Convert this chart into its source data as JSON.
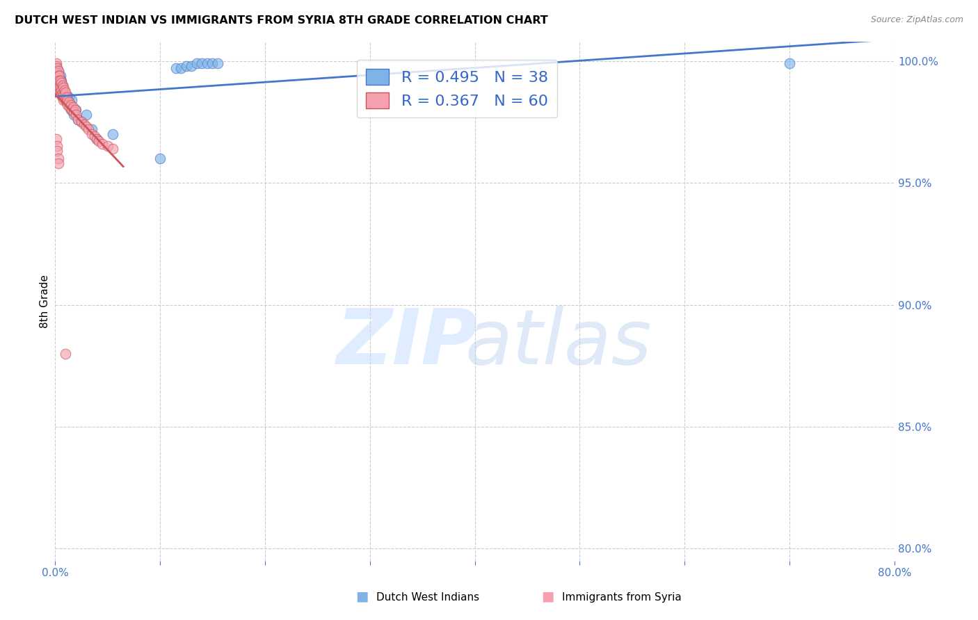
{
  "title": "DUTCH WEST INDIAN VS IMMIGRANTS FROM SYRIA 8TH GRADE CORRELATION CHART",
  "source": "Source: ZipAtlas.com",
  "xlabel_label": "Dutch West Indians",
  "ylabel_label": "8th Grade",
  "xlabel2_label": "Immigrants from Syria",
  "xlim": [
    0.0,
    0.8
  ],
  "ylim": [
    0.795,
    1.008
  ],
  "xticks": [
    0.0,
    0.1,
    0.2,
    0.3,
    0.4,
    0.5,
    0.6,
    0.7,
    0.8
  ],
  "yticks": [
    0.8,
    0.85,
    0.9,
    0.95,
    1.0
  ],
  "xtick_labels": [
    "0.0%",
    "",
    "",
    "",
    "",
    "",
    "",
    "",
    "80.0%"
  ],
  "ytick_labels_right": [
    "80.0%",
    "85.0%",
    "90.0%",
    "95.0%",
    "100.0%"
  ],
  "blue_color": "#7FB3E8",
  "pink_color": "#F4A0B0",
  "line_blue_color": "#4477CC",
  "line_pink_color": "#CC5555",
  "R_blue": 0.495,
  "N_blue": 38,
  "R_pink": 0.367,
  "N_pink": 60,
  "legend_text_color": "#3366CC",
  "blue_points_x": [
    0.001,
    0.002,
    0.003,
    0.004,
    0.004,
    0.005,
    0.005,
    0.006,
    0.007,
    0.007,
    0.008,
    0.009,
    0.01,
    0.011,
    0.012,
    0.013,
    0.014,
    0.015,
    0.016,
    0.018,
    0.02,
    0.022,
    0.025,
    0.03,
    0.035,
    0.04,
    0.055,
    0.1,
    0.115,
    0.12,
    0.125,
    0.13,
    0.135,
    0.14,
    0.145,
    0.15,
    0.155,
    0.7
  ],
  "blue_points_y": [
    0.997,
    0.992,
    0.996,
    0.993,
    0.99,
    0.988,
    0.994,
    0.992,
    0.99,
    0.987,
    0.988,
    0.985,
    0.984,
    0.986,
    0.983,
    0.985,
    0.982,
    0.98,
    0.984,
    0.978,
    0.98,
    0.976,
    0.975,
    0.978,
    0.972,
    0.968,
    0.97,
    0.96,
    0.997,
    0.997,
    0.998,
    0.998,
    0.999,
    0.999,
    0.999,
    0.999,
    0.999,
    0.999
  ],
  "pink_points_x": [
    0.001,
    0.001,
    0.001,
    0.002,
    0.002,
    0.002,
    0.002,
    0.003,
    0.003,
    0.003,
    0.003,
    0.004,
    0.004,
    0.004,
    0.005,
    0.005,
    0.005,
    0.006,
    0.006,
    0.006,
    0.007,
    0.007,
    0.007,
    0.008,
    0.008,
    0.008,
    0.009,
    0.009,
    0.01,
    0.01,
    0.011,
    0.011,
    0.012,
    0.012,
    0.013,
    0.014,
    0.015,
    0.016,
    0.017,
    0.018,
    0.019,
    0.02,
    0.022,
    0.025,
    0.028,
    0.03,
    0.032,
    0.035,
    0.038,
    0.04,
    0.042,
    0.045,
    0.05,
    0.055,
    0.001,
    0.002,
    0.002,
    0.003,
    0.003,
    0.01
  ],
  "pink_points_y": [
    0.999,
    0.998,
    0.996,
    0.997,
    0.995,
    0.993,
    0.991,
    0.996,
    0.994,
    0.992,
    0.99,
    0.994,
    0.992,
    0.989,
    0.992,
    0.989,
    0.987,
    0.991,
    0.988,
    0.986,
    0.99,
    0.987,
    0.985,
    0.989,
    0.986,
    0.984,
    0.988,
    0.985,
    0.987,
    0.984,
    0.985,
    0.983,
    0.984,
    0.982,
    0.983,
    0.981,
    0.982,
    0.98,
    0.981,
    0.979,
    0.98,
    0.978,
    0.976,
    0.975,
    0.974,
    0.973,
    0.972,
    0.97,
    0.969,
    0.968,
    0.967,
    0.966,
    0.965,
    0.964,
    0.968,
    0.965,
    0.963,
    0.96,
    0.958,
    0.88
  ],
  "grid_color": "#CCCCCC",
  "bg_color": "#FFFFFF"
}
